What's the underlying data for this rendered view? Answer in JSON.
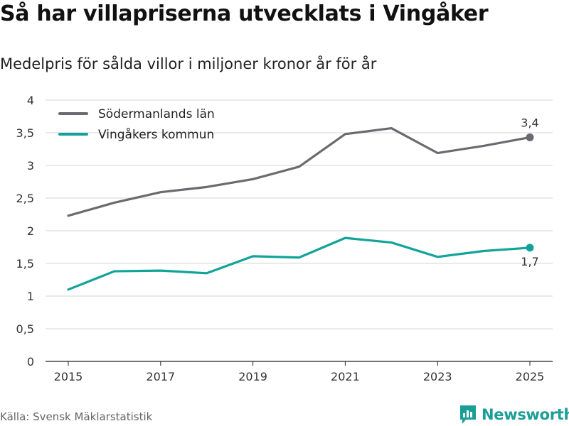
{
  "title": "Så har villapriserna utvecklats i Vingåker",
  "subtitle": "Medelpris för sålda villor i miljoner kronor år för år",
  "source": "Källa: Svensk Mäklarstatistik",
  "brand": "Newsworthy",
  "colors": {
    "county": "#6b6a70",
    "municipality": "#12a39a",
    "grid": "#d6d6d6",
    "brand": "#1a9e95"
  },
  "chart_data": {
    "type": "line",
    "title": "Så har villapriserna utvecklats i Vingåker",
    "subtitle": "Medelpris för sålda villor i miljoner kronor år för år",
    "xlabel": "",
    "ylabel": "",
    "x": [
      2015,
      2016,
      2017,
      2018,
      2019,
      2020,
      2021,
      2022,
      2023,
      2024,
      2025
    ],
    "xticks": [
      2015,
      2017,
      2019,
      2021,
      2023,
      2025
    ],
    "xtick_labels": [
      "2015",
      "2017",
      "2019",
      "2021",
      "2023",
      "2025"
    ],
    "ylim": [
      0,
      4
    ],
    "yticks": [
      0,
      0.5,
      1,
      1.5,
      2,
      2.5,
      3,
      3.5,
      4
    ],
    "ytick_labels": [
      "0",
      "0,5",
      "1",
      "1,5",
      "2",
      "2,5",
      "3",
      "3,5",
      "4"
    ],
    "grid": true,
    "legend_position": "top-left",
    "series": [
      {
        "name": "Södermanlands län",
        "color": "#6b6a70",
        "values": [
          2.23,
          2.43,
          2.59,
          2.67,
          2.79,
          2.98,
          3.48,
          3.57,
          3.19,
          3.3,
          3.43
        ],
        "end_label": "3,4",
        "end_label_position": "above"
      },
      {
        "name": "Vingåkers kommun",
        "color": "#12a39a",
        "values": [
          1.1,
          1.38,
          1.39,
          1.35,
          1.61,
          1.59,
          1.89,
          1.82,
          1.6,
          1.69,
          1.74
        ],
        "end_label": "1,7",
        "end_label_position": "below"
      }
    ]
  }
}
